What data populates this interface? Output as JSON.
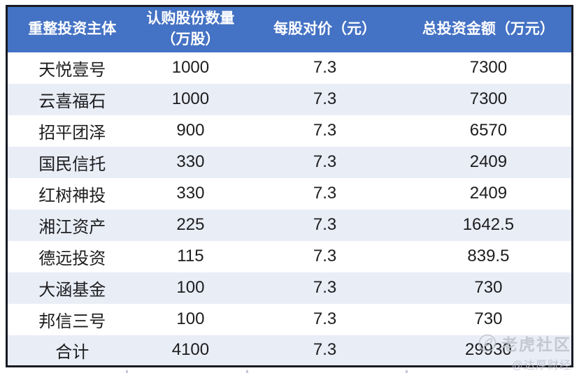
{
  "chart_data": {
    "type": "table",
    "columns": [
      {
        "label": "重整投资主体"
      },
      {
        "label": "认购股份数量\n（万股）"
      },
      {
        "label": "每股对价（元）"
      },
      {
        "label": "总投资金额（万元）"
      }
    ],
    "rows": [
      [
        "天悦壹号",
        "1000",
        "7.3",
        "7300"
      ],
      [
        "云喜福石",
        "1000",
        "7.3",
        "7300"
      ],
      [
        "招平团泽",
        "900",
        "7.3",
        "6570"
      ],
      [
        "国民信托",
        "330",
        "7.3",
        "2409"
      ],
      [
        "红树神投",
        "330",
        "7.3",
        "2409"
      ],
      [
        "湘江资产",
        "225",
        "7.3",
        "1642.5"
      ],
      [
        "德远投资",
        "115",
        "7.3",
        "839.5"
      ],
      [
        "大涵基金",
        "100",
        "7.3",
        "730"
      ],
      [
        "邦信三号",
        "100",
        "7.3",
        "730"
      ],
      [
        "合计",
        "4100",
        "7.3",
        "29930"
      ]
    ],
    "total_row_label": "合计",
    "layout": {
      "header_rows": 1,
      "grid": "alternating-row-shading",
      "alignment": "center"
    }
  },
  "watermark": {
    "community": "老虎社区",
    "handle": "@达厚财经",
    "icon": "feather-quill-icon"
  },
  "colors": {
    "header_bg": "#4472c4",
    "header_text": "#ffffff",
    "row_alt_bg": "#e9edf6",
    "row_bg": "#ffffff",
    "border": "#171a21",
    "body_text": "#1d1d1f",
    "watermark": "#bdc0cb"
  }
}
